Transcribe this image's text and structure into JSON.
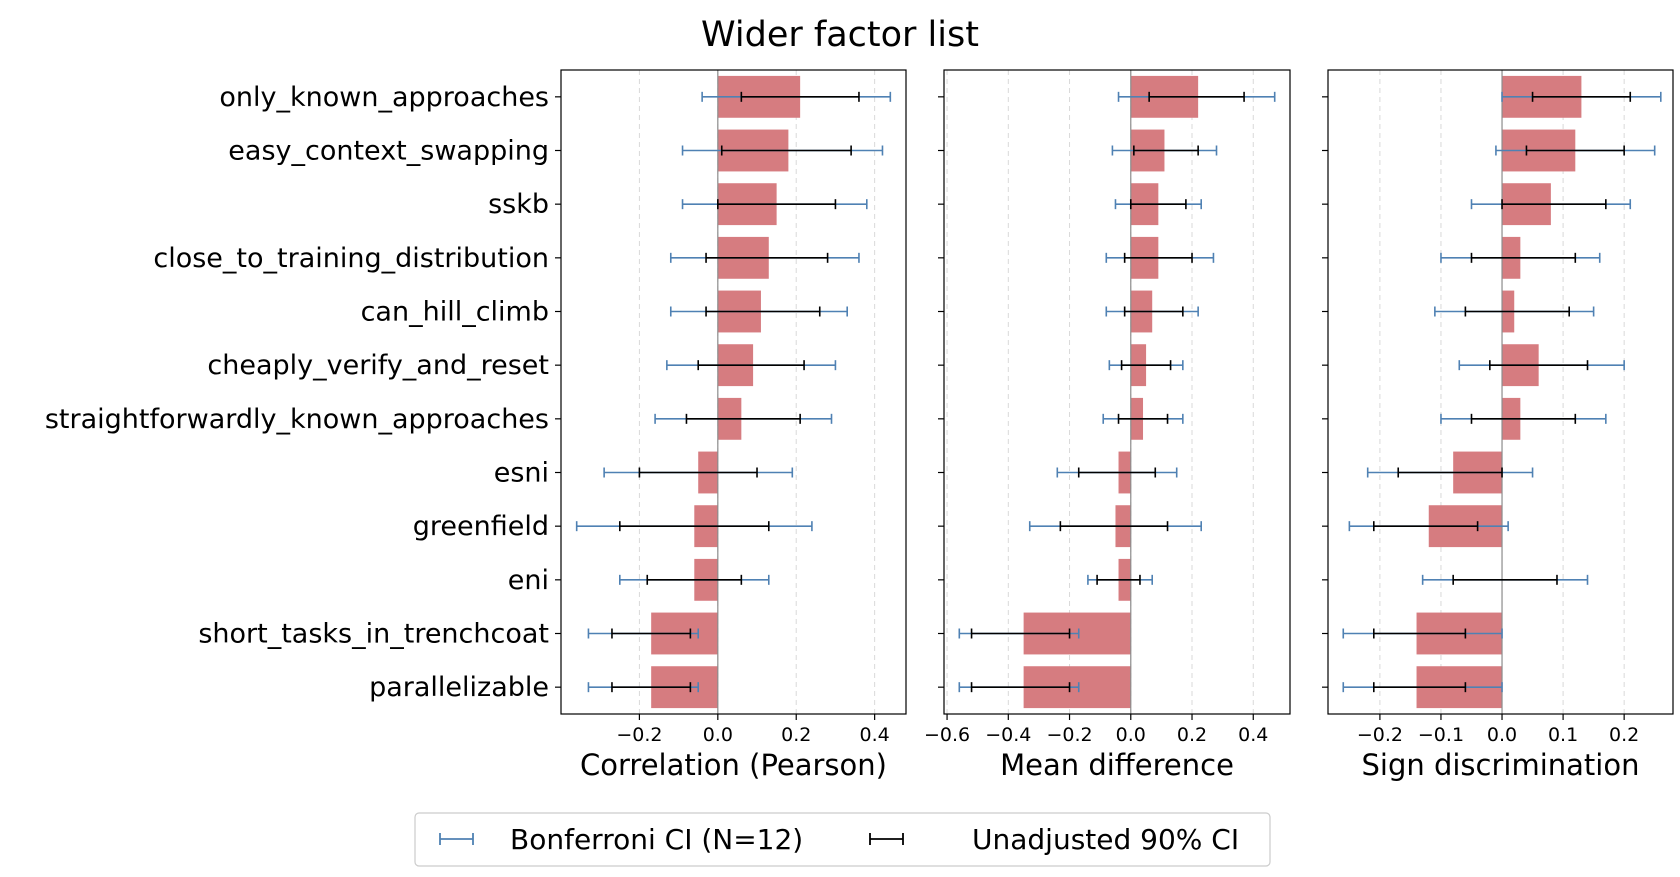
{
  "figure": {
    "title": "Wider factor list"
  },
  "chart_data": {
    "type": "bar",
    "orientation": "horizontal",
    "title": "Wider factor list",
    "categories": [
      "only_known_approaches",
      "easy_context_swapping",
      "sskb",
      "close_to_training_distribution",
      "can_hill_climb",
      "cheaply_verify_and_reset",
      "straightforwardly_known_approaches",
      "esni",
      "greenfield",
      "eni",
      "short_tasks_in_trenchcoat",
      "parallelizable"
    ],
    "legend": {
      "placement": "bottom-center",
      "items": [
        {
          "label": "Bonferroni CI (N=12)",
          "color": "#4f81b3"
        },
        {
          "label": "Unadjusted 90% CI",
          "color": "#000000"
        }
      ]
    },
    "colors": {
      "bar": "#d67c80",
      "bonferroni": "#4f81b3",
      "unadjusted": "#000000"
    },
    "grid": "vertical dashed",
    "panels": [
      {
        "xlabel": "Correlation (Pearson)",
        "xlim": [
          -0.4,
          0.48
        ],
        "xticks": [
          -0.2,
          0.0,
          0.2,
          0.4
        ],
        "xtick_labels": [
          "−0.2",
          "0.0",
          "0.2",
          "0.4"
        ],
        "values": [
          0.21,
          0.18,
          0.15,
          0.13,
          0.11,
          0.09,
          0.06,
          -0.05,
          -0.06,
          -0.06,
          -0.17,
          -0.17
        ],
        "unadjusted_ci": [
          [
            0.06,
            0.36
          ],
          [
            0.01,
            0.34
          ],
          [
            0.0,
            0.3
          ],
          [
            -0.03,
            0.28
          ],
          [
            -0.03,
            0.26
          ],
          [
            -0.05,
            0.22
          ],
          [
            -0.08,
            0.21
          ],
          [
            -0.2,
            0.1
          ],
          [
            -0.25,
            0.13
          ],
          [
            -0.18,
            0.06
          ],
          [
            -0.27,
            -0.07
          ],
          [
            -0.27,
            -0.07
          ]
        ],
        "bonferroni_ci": [
          [
            -0.04,
            0.44
          ],
          [
            -0.09,
            0.42
          ],
          [
            -0.09,
            0.38
          ],
          [
            -0.12,
            0.36
          ],
          [
            -0.12,
            0.33
          ],
          [
            -0.13,
            0.3
          ],
          [
            -0.16,
            0.29
          ],
          [
            -0.29,
            0.19
          ],
          [
            -0.36,
            0.24
          ],
          [
            -0.25,
            0.13
          ],
          [
            -0.33,
            -0.05
          ],
          [
            -0.33,
            -0.05
          ]
        ]
      },
      {
        "xlabel": "Mean difference",
        "xlim": [
          -0.61,
          0.52
        ],
        "xticks": [
          -0.6,
          -0.4,
          -0.2,
          0.0,
          0.2,
          0.4
        ],
        "xtick_labels": [
          "−0.6",
          "−0.4",
          "−0.2",
          "0.0",
          "0.2",
          "0.4"
        ],
        "values": [
          0.22,
          0.11,
          0.09,
          0.09,
          0.07,
          0.05,
          0.04,
          -0.04,
          -0.05,
          -0.04,
          -0.35,
          -0.35
        ],
        "unadjusted_ci": [
          [
            0.06,
            0.37
          ],
          [
            0.01,
            0.22
          ],
          [
            0.0,
            0.18
          ],
          [
            -0.02,
            0.2
          ],
          [
            -0.02,
            0.17
          ],
          [
            -0.03,
            0.13
          ],
          [
            -0.04,
            0.12
          ],
          [
            -0.17,
            0.08
          ],
          [
            -0.23,
            0.12
          ],
          [
            -0.11,
            0.03
          ],
          [
            -0.52,
            -0.2
          ],
          [
            -0.52,
            -0.2
          ]
        ],
        "bonferroni_ci": [
          [
            -0.04,
            0.47
          ],
          [
            -0.06,
            0.28
          ],
          [
            -0.05,
            0.23
          ],
          [
            -0.08,
            0.27
          ],
          [
            -0.08,
            0.22
          ],
          [
            -0.07,
            0.17
          ],
          [
            -0.09,
            0.17
          ],
          [
            -0.24,
            0.15
          ],
          [
            -0.33,
            0.23
          ],
          [
            -0.14,
            0.07
          ],
          [
            -0.56,
            -0.17
          ],
          [
            -0.56,
            -0.17
          ]
        ]
      },
      {
        "xlabel": "Sign discrimination",
        "xlim": [
          -0.285,
          0.28
        ],
        "xticks": [
          -0.2,
          -0.1,
          0.0,
          0.1,
          0.2
        ],
        "xtick_labels": [
          "−0.2",
          "−0.1",
          "0.0",
          "0.1",
          "0.2"
        ],
        "values": [
          0.13,
          0.12,
          0.08,
          0.03,
          0.02,
          0.06,
          0.03,
          -0.08,
          -0.12,
          0.0,
          -0.14,
          -0.14
        ],
        "unadjusted_ci": [
          [
            0.05,
            0.21
          ],
          [
            0.04,
            0.2
          ],
          [
            0.0,
            0.17
          ],
          [
            -0.05,
            0.12
          ],
          [
            -0.06,
            0.11
          ],
          [
            -0.02,
            0.14
          ],
          [
            -0.05,
            0.12
          ],
          [
            -0.17,
            0.0
          ],
          [
            -0.21,
            -0.04
          ],
          [
            -0.08,
            0.09
          ],
          [
            -0.21,
            -0.06
          ],
          [
            -0.21,
            -0.06
          ]
        ],
        "bonferroni_ci": [
          [
            0.0,
            0.26
          ],
          [
            -0.01,
            0.25
          ],
          [
            -0.05,
            0.21
          ],
          [
            -0.1,
            0.16
          ],
          [
            -0.11,
            0.15
          ],
          [
            -0.07,
            0.2
          ],
          [
            -0.1,
            0.17
          ],
          [
            -0.22,
            0.05
          ],
          [
            -0.25,
            0.01
          ],
          [
            -0.13,
            0.14
          ],
          [
            -0.26,
            0.0
          ],
          [
            -0.26,
            0.0
          ]
        ]
      }
    ]
  }
}
